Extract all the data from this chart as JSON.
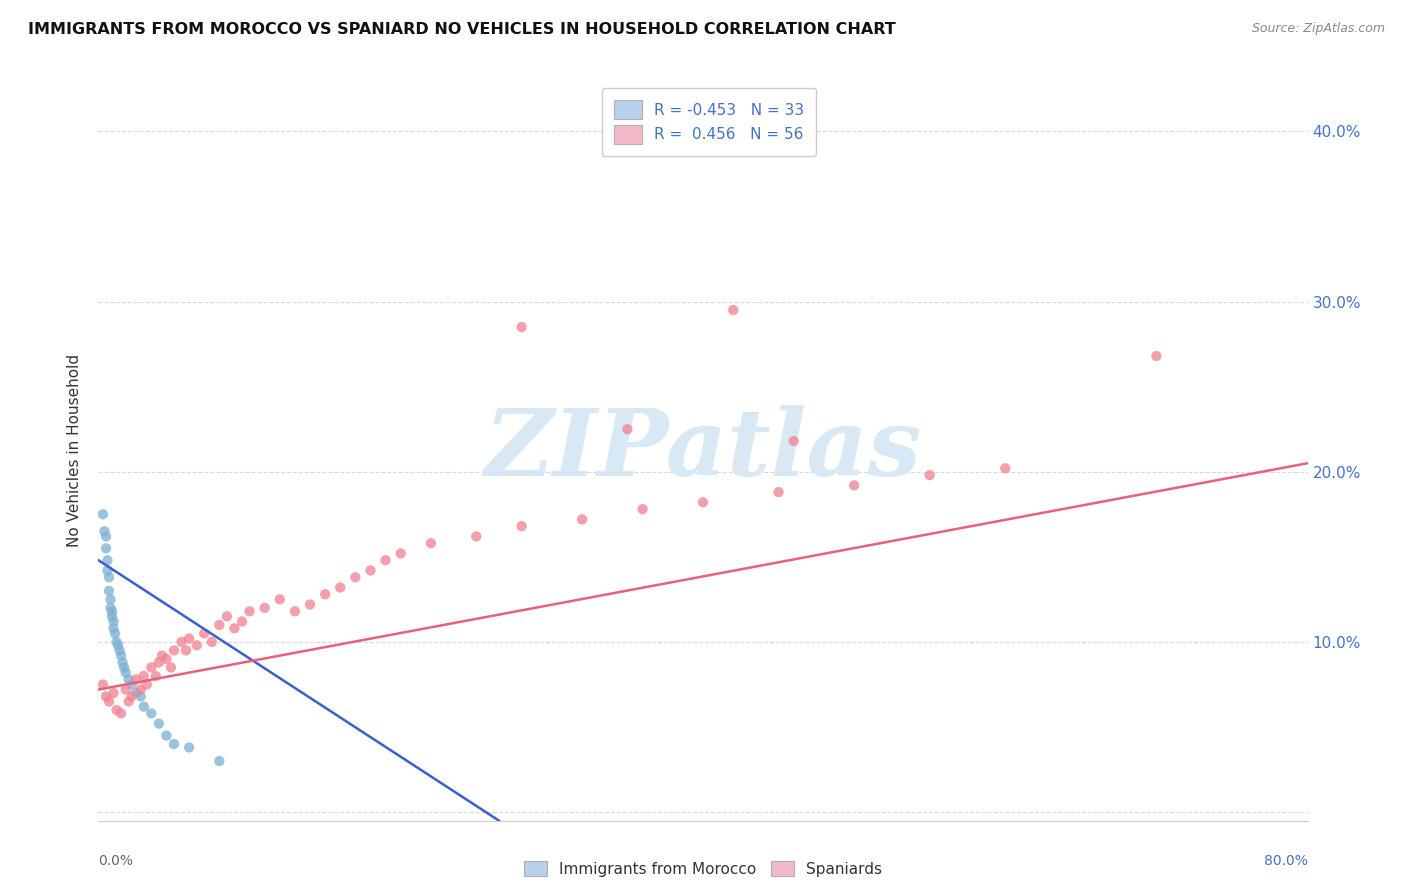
{
  "title": "IMMIGRANTS FROM MOROCCO VS SPANIARD NO VEHICLES IN HOUSEHOLD CORRELATION CHART",
  "source": "Source: ZipAtlas.com",
  "ylabel": "No Vehicles in Household",
  "ytick_values": [
    0.0,
    0.1,
    0.2,
    0.3,
    0.4
  ],
  "xlim": [
    0.0,
    0.8
  ],
  "ylim": [
    -0.005,
    0.43
  ],
  "legend_entries": [
    {
      "label": "R = -0.453   N = 33",
      "facecolor": "#b8d0ea"
    },
    {
      "label": "R =  0.456   N = 56",
      "facecolor": "#f5b8c8"
    }
  ],
  "morocco_color": "#7bafd4",
  "spaniard_color": "#f08090",
  "morocco_line_color": "#3a5fcd",
  "spaniard_line_color": "#e8607a",
  "watermark_text": "ZIPatlas",
  "watermark_color": "#d8e8f5",
  "background_color": "#ffffff",
  "grid_color": "#d0d0d0",
  "morocco_scatter": [
    [
      0.003,
      0.175
    ],
    [
      0.004,
      0.165
    ],
    [
      0.005,
      0.162
    ],
    [
      0.005,
      0.155
    ],
    [
      0.006,
      0.148
    ],
    [
      0.006,
      0.142
    ],
    [
      0.007,
      0.138
    ],
    [
      0.007,
      0.13
    ],
    [
      0.008,
      0.125
    ],
    [
      0.008,
      0.12
    ],
    [
      0.009,
      0.118
    ],
    [
      0.009,
      0.115
    ],
    [
      0.01,
      0.112
    ],
    [
      0.01,
      0.108
    ],
    [
      0.011,
      0.105
    ],
    [
      0.012,
      0.1
    ],
    [
      0.013,
      0.098
    ],
    [
      0.014,
      0.095
    ],
    [
      0.015,
      0.092
    ],
    [
      0.016,
      0.088
    ],
    [
      0.017,
      0.085
    ],
    [
      0.018,
      0.082
    ],
    [
      0.02,
      0.078
    ],
    [
      0.022,
      0.075
    ],
    [
      0.025,
      0.07
    ],
    [
      0.028,
      0.068
    ],
    [
      0.03,
      0.062
    ],
    [
      0.035,
      0.058
    ],
    [
      0.04,
      0.052
    ],
    [
      0.045,
      0.045
    ],
    [
      0.05,
      0.04
    ],
    [
      0.06,
      0.038
    ],
    [
      0.08,
      0.03
    ]
  ],
  "spaniard_scatter": [
    [
      0.003,
      0.075
    ],
    [
      0.005,
      0.068
    ],
    [
      0.007,
      0.065
    ],
    [
      0.01,
      0.07
    ],
    [
      0.012,
      0.06
    ],
    [
      0.015,
      0.058
    ],
    [
      0.018,
      0.072
    ],
    [
      0.02,
      0.065
    ],
    [
      0.022,
      0.068
    ],
    [
      0.025,
      0.078
    ],
    [
      0.028,
      0.072
    ],
    [
      0.03,
      0.08
    ],
    [
      0.032,
      0.075
    ],
    [
      0.035,
      0.085
    ],
    [
      0.038,
      0.08
    ],
    [
      0.04,
      0.088
    ],
    [
      0.042,
      0.092
    ],
    [
      0.045,
      0.09
    ],
    [
      0.048,
      0.085
    ],
    [
      0.05,
      0.095
    ],
    [
      0.055,
      0.1
    ],
    [
      0.058,
      0.095
    ],
    [
      0.06,
      0.102
    ],
    [
      0.065,
      0.098
    ],
    [
      0.07,
      0.105
    ],
    [
      0.075,
      0.1
    ],
    [
      0.08,
      0.11
    ],
    [
      0.085,
      0.115
    ],
    [
      0.09,
      0.108
    ],
    [
      0.095,
      0.112
    ],
    [
      0.1,
      0.118
    ],
    [
      0.11,
      0.12
    ],
    [
      0.12,
      0.125
    ],
    [
      0.13,
      0.118
    ],
    [
      0.14,
      0.122
    ],
    [
      0.15,
      0.128
    ],
    [
      0.16,
      0.132
    ],
    [
      0.17,
      0.138
    ],
    [
      0.18,
      0.142
    ],
    [
      0.19,
      0.148
    ],
    [
      0.2,
      0.152
    ],
    [
      0.22,
      0.158
    ],
    [
      0.25,
      0.162
    ],
    [
      0.28,
      0.168
    ],
    [
      0.32,
      0.172
    ],
    [
      0.36,
      0.178
    ],
    [
      0.4,
      0.182
    ],
    [
      0.45,
      0.188
    ],
    [
      0.5,
      0.192
    ],
    [
      0.55,
      0.198
    ],
    [
      0.6,
      0.202
    ],
    [
      0.7,
      0.268
    ],
    [
      0.42,
      0.295
    ],
    [
      0.28,
      0.285
    ],
    [
      0.35,
      0.225
    ],
    [
      0.46,
      0.218
    ]
  ],
  "morocco_line_x": [
    0.0,
    0.265
  ],
  "morocco_line_y": [
    0.148,
    -0.005
  ],
  "spaniard_line_x": [
    0.0,
    0.8
  ],
  "spaniard_line_y": [
    0.072,
    0.205
  ]
}
